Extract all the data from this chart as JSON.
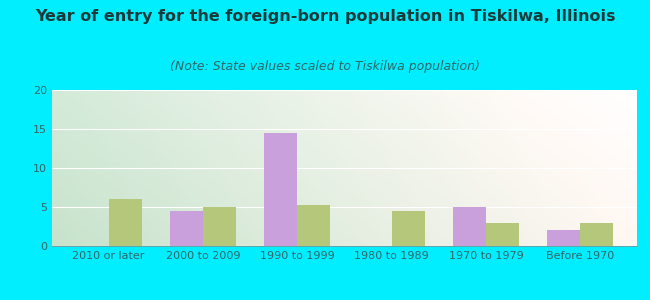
{
  "title": "Year of entry for the foreign-born population in Tiskilwa, Illinois",
  "subtitle": "(Note: State values scaled to Tiskilwa population)",
  "categories": [
    "2010 or later",
    "2000 to 2009",
    "1990 to 1999",
    "1980 to 1989",
    "1970 to 1979",
    "Before 1970"
  ],
  "tiskilwa_values": [
    0,
    4.5,
    14.5,
    0,
    5.0,
    2.0
  ],
  "illinois_values": [
    6.0,
    5.0,
    5.3,
    4.5,
    3.0,
    3.0
  ],
  "tiskilwa_color": "#c9a0dc",
  "illinois_color": "#b5c77a",
  "background_outer": "#00eeff",
  "ylim": [
    0,
    20
  ],
  "yticks": [
    0,
    5,
    10,
    15,
    20
  ],
  "bar_width": 0.35,
  "title_fontsize": 11.5,
  "subtitle_fontsize": 9,
  "tick_label_fontsize": 8,
  "legend_fontsize": 9.5,
  "title_color": "#1a3a3a",
  "subtitle_color": "#336666",
  "tick_color": "#336666",
  "grid_color": "#ffffff"
}
